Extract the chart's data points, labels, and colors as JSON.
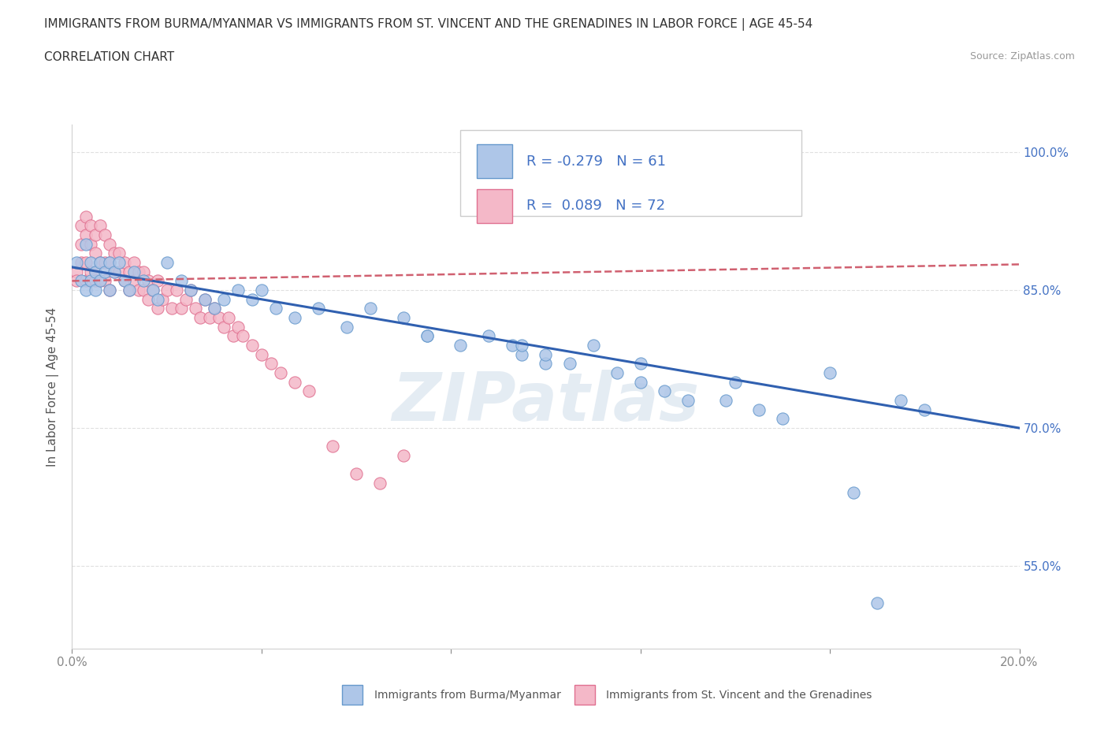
{
  "title_line1": "IMMIGRANTS FROM BURMA/MYANMAR VS IMMIGRANTS FROM ST. VINCENT AND THE GRENADINES IN LABOR FORCE | AGE 45-54",
  "title_line2": "CORRELATION CHART",
  "source_text": "Source: ZipAtlas.com",
  "ylabel": "In Labor Force | Age 45-54",
  "xlim": [
    0.0,
    0.2
  ],
  "ylim": [
    0.46,
    1.03
  ],
  "yticks": [
    0.55,
    0.7,
    0.85,
    1.0
  ],
  "ytick_labels": [
    "55.0%",
    "70.0%",
    "85.0%",
    "100.0%"
  ],
  "xticks": [
    0.0,
    0.04,
    0.08,
    0.12,
    0.16,
    0.2
  ],
  "xtick_labels": [
    "0.0%",
    "",
    "",
    "",
    "",
    "20.0%"
  ],
  "series1_color": "#aec6e8",
  "series1_edge": "#6699cc",
  "series2_color": "#f4b8c8",
  "series2_edge": "#e07090",
  "trendline1_color": "#3060b0",
  "trendline2_color": "#d06070",
  "R1": -0.279,
  "N1": 61,
  "R2": 0.089,
  "N2": 72,
  "legend_label1": "Immigrants from Burma/Myanmar",
  "legend_label2": "Immigrants from St. Vincent and the Grenadines",
  "watermark": "ZIPatlas",
  "background_color": "#ffffff",
  "trendline1_x0": 0.0,
  "trendline1_y0": 0.875,
  "trendline1_x1": 0.2,
  "trendline1_y1": 0.7,
  "trendline2_x0": 0.0,
  "trendline2_y0": 0.86,
  "trendline2_x1": 0.2,
  "trendline2_y1": 0.878,
  "series1_x": [
    0.001,
    0.002,
    0.003,
    0.003,
    0.004,
    0.004,
    0.005,
    0.005,
    0.006,
    0.006,
    0.007,
    0.008,
    0.008,
    0.009,
    0.01,
    0.011,
    0.012,
    0.013,
    0.015,
    0.017,
    0.018,
    0.02,
    0.023,
    0.025,
    0.028,
    0.03,
    0.032,
    0.035,
    0.038,
    0.04,
    0.043,
    0.047,
    0.052,
    0.058,
    0.063,
    0.07,
    0.075,
    0.082,
    0.088,
    0.093,
    0.095,
    0.1,
    0.105,
    0.11,
    0.115,
    0.12,
    0.125,
    0.13,
    0.138,
    0.145,
    0.15,
    0.16,
    0.165,
    0.17,
    0.175,
    0.18,
    0.1,
    0.075,
    0.095,
    0.12,
    0.14
  ],
  "series1_y": [
    0.88,
    0.86,
    0.9,
    0.85,
    0.88,
    0.86,
    0.87,
    0.85,
    0.88,
    0.86,
    0.87,
    0.88,
    0.85,
    0.87,
    0.88,
    0.86,
    0.85,
    0.87,
    0.86,
    0.85,
    0.84,
    0.88,
    0.86,
    0.85,
    0.84,
    0.83,
    0.84,
    0.85,
    0.84,
    0.85,
    0.83,
    0.82,
    0.83,
    0.81,
    0.83,
    0.82,
    0.8,
    0.79,
    0.8,
    0.79,
    0.78,
    0.77,
    0.77,
    0.79,
    0.76,
    0.75,
    0.74,
    0.73,
    0.73,
    0.72,
    0.71,
    0.76,
    0.63,
    0.51,
    0.73,
    0.72,
    0.78,
    0.8,
    0.79,
    0.77,
    0.75
  ],
  "series2_x": [
    0.001,
    0.001,
    0.002,
    0.002,
    0.002,
    0.003,
    0.003,
    0.003,
    0.003,
    0.004,
    0.004,
    0.004,
    0.005,
    0.005,
    0.005,
    0.005,
    0.006,
    0.006,
    0.006,
    0.007,
    0.007,
    0.007,
    0.008,
    0.008,
    0.008,
    0.009,
    0.009,
    0.01,
    0.01,
    0.011,
    0.011,
    0.012,
    0.012,
    0.013,
    0.013,
    0.014,
    0.014,
    0.015,
    0.015,
    0.016,
    0.016,
    0.017,
    0.018,
    0.018,
    0.019,
    0.02,
    0.021,
    0.022,
    0.023,
    0.024,
    0.025,
    0.026,
    0.027,
    0.028,
    0.029,
    0.03,
    0.031,
    0.032,
    0.033,
    0.034,
    0.035,
    0.036,
    0.038,
    0.04,
    0.042,
    0.044,
    0.047,
    0.05,
    0.055,
    0.06,
    0.065,
    0.07
  ],
  "series2_y": [
    0.87,
    0.86,
    0.92,
    0.9,
    0.88,
    0.93,
    0.91,
    0.88,
    0.86,
    0.92,
    0.9,
    0.87,
    0.91,
    0.89,
    0.87,
    0.86,
    0.92,
    0.88,
    0.86,
    0.91,
    0.88,
    0.86,
    0.9,
    0.88,
    0.85,
    0.89,
    0.87,
    0.89,
    0.87,
    0.88,
    0.86,
    0.87,
    0.85,
    0.88,
    0.86,
    0.87,
    0.85,
    0.87,
    0.85,
    0.86,
    0.84,
    0.85,
    0.86,
    0.83,
    0.84,
    0.85,
    0.83,
    0.85,
    0.83,
    0.84,
    0.85,
    0.83,
    0.82,
    0.84,
    0.82,
    0.83,
    0.82,
    0.81,
    0.82,
    0.8,
    0.81,
    0.8,
    0.79,
    0.78,
    0.77,
    0.76,
    0.75,
    0.74,
    0.68,
    0.65,
    0.64,
    0.67
  ]
}
